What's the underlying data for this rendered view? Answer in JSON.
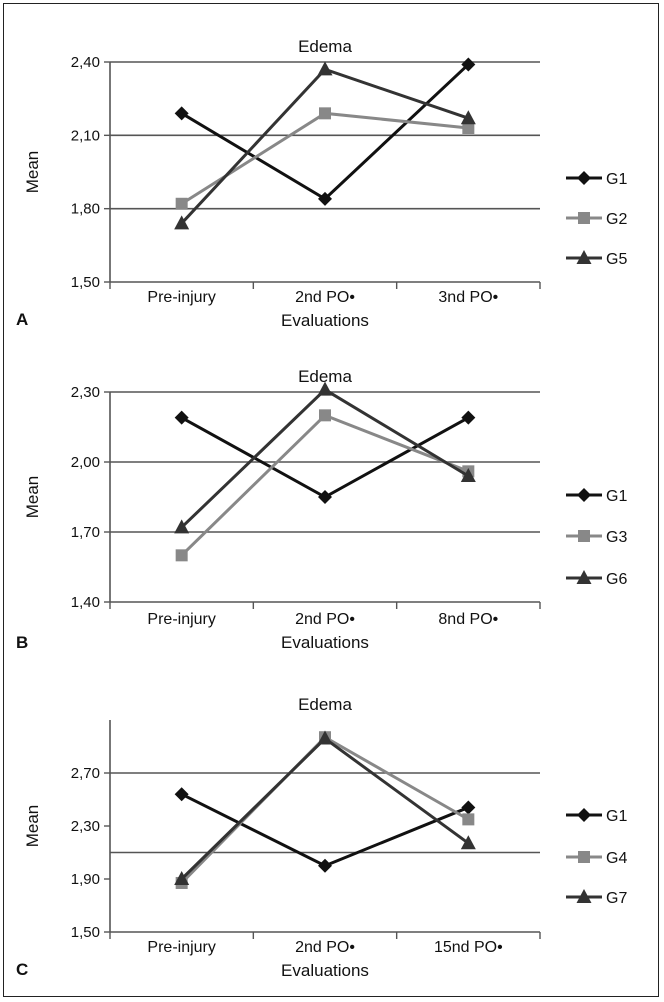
{
  "chart_data": [
    {
      "type": "line",
      "panel": "A",
      "title": "Edema",
      "xlabel": "Evaluations",
      "ylabel": "Mean",
      "categories": [
        "Pre-injury",
        "2nd PO•",
        "3nd PO•"
      ],
      "ylim": [
        1.5,
        2.4
      ],
      "yticks": [
        1.5,
        1.8,
        2.1,
        2.4
      ],
      "ytick_labels": [
        "1,50",
        "1,80",
        "2,10",
        "2,40"
      ],
      "gridlines": [
        1.8,
        2.1,
        2.4
      ],
      "legend": "right",
      "series": [
        {
          "name": "G1",
          "marker": "diamond",
          "color": "#111111",
          "values": [
            2.19,
            1.84,
            2.39
          ]
        },
        {
          "name": "G2",
          "marker": "square",
          "color": "#888888",
          "values": [
            1.82,
            2.19,
            2.13
          ]
        },
        {
          "name": "G5",
          "marker": "triangle",
          "color": "#333333",
          "values": [
            1.74,
            2.37,
            2.17
          ]
        }
      ]
    },
    {
      "type": "line",
      "panel": "B",
      "title": "Edema",
      "xlabel": "Evaluations",
      "ylabel": "Mean",
      "categories": [
        "Pre-injury",
        "2nd PO•",
        "8nd PO•"
      ],
      "ylim": [
        1.4,
        2.3
      ],
      "yticks": [
        1.4,
        1.7,
        2.0,
        2.3
      ],
      "ytick_labels": [
        "1,40",
        "1,70",
        "2,00",
        "2,30"
      ],
      "gridlines": [
        1.7,
        2.0,
        2.3
      ],
      "legend": "right",
      "series": [
        {
          "name": "G1",
          "marker": "diamond",
          "color": "#111111",
          "values": [
            2.19,
            1.85,
            2.19
          ]
        },
        {
          "name": "G3",
          "marker": "square",
          "color": "#888888",
          "values": [
            1.6,
            2.2,
            1.96
          ]
        },
        {
          "name": "G6",
          "marker": "triangle",
          "color": "#333333",
          "values": [
            1.72,
            2.31,
            1.94
          ]
        }
      ]
    },
    {
      "type": "line",
      "panel": "C",
      "title": "Edema",
      "xlabel": "Evaluations",
      "ylabel": "Mean",
      "categories": [
        "Pre-injury",
        "2nd PO•",
        "15nd PO•"
      ],
      "ylim": [
        1.5,
        3.1
      ],
      "yticks": [
        1.5,
        1.9,
        2.3,
        2.7
      ],
      "ytick_labels": [
        "1,50",
        "1,90",
        "2,30",
        "2,70"
      ],
      "gridlines": [
        2.1,
        2.7
      ],
      "legend": "right",
      "series": [
        {
          "name": "G1",
          "marker": "diamond",
          "color": "#111111",
          "values": [
            2.54,
            2.0,
            2.44
          ]
        },
        {
          "name": "G4",
          "marker": "square",
          "color": "#888888",
          "values": [
            1.87,
            2.97,
            2.35
          ]
        },
        {
          "name": "G7",
          "marker": "triangle",
          "color": "#333333",
          "values": [
            1.9,
            2.96,
            2.17
          ]
        }
      ]
    }
  ]
}
